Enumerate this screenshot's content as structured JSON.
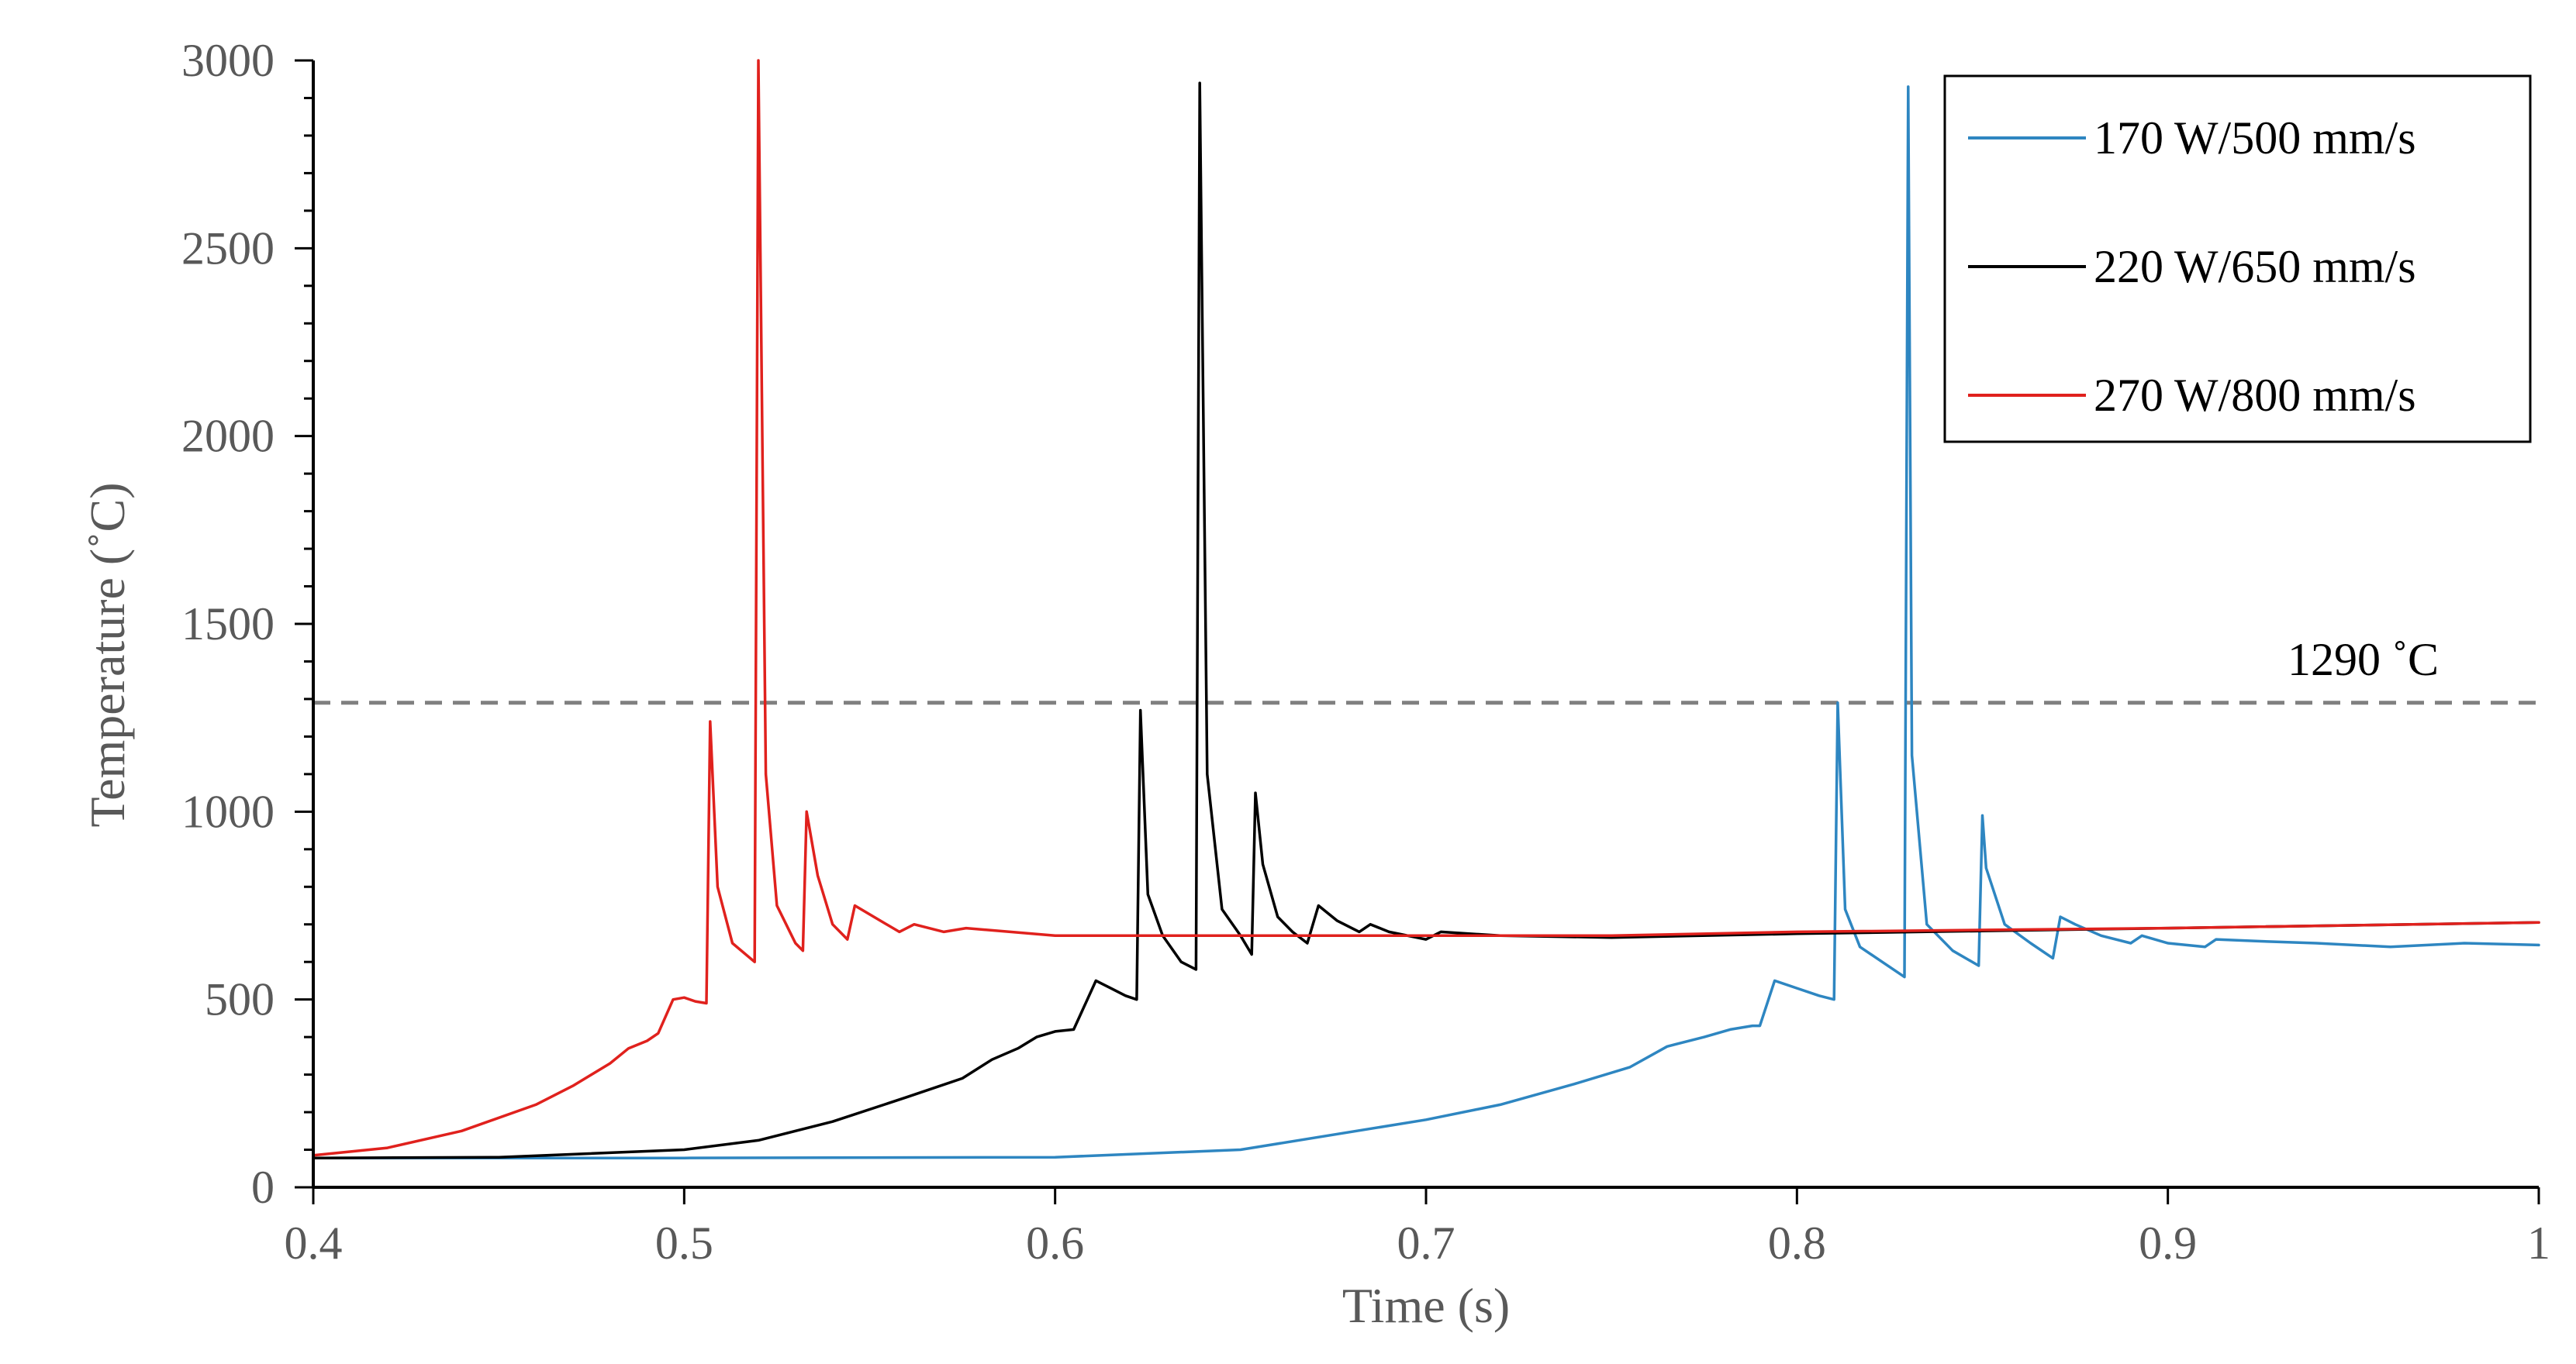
{
  "chart_data": {
    "type": "line",
    "title": "",
    "xlabel": "Time (s)",
    "ylabel": "Temperature (˚C)",
    "xlim": [
      0.4,
      1.0
    ],
    "ylim": [
      0,
      3000
    ],
    "x_ticks": [
      0.4,
      0.5,
      0.6,
      0.7,
      0.8,
      0.9,
      1.0
    ],
    "x_tick_labels": [
      "0.4",
      "0.5",
      "0.6",
      "0.7",
      "0.8",
      "0.9",
      "1"
    ],
    "y_ticks": [
      0,
      500,
      1000,
      1500,
      2000,
      2500,
      3000
    ],
    "y_tick_labels": [
      "0",
      "500",
      "1000",
      "1500",
      "2000",
      "2500",
      "3000"
    ],
    "grid": false,
    "legend_position": "top-right",
    "reference_line": {
      "y": 1290,
      "label": "1290 ˚C",
      "color": "#808080",
      "style": "dashed"
    },
    "series": [
      {
        "name": "170 W/500 mm/s",
        "color": "#2e86c1",
        "x": [
          0.4,
          0.5,
          0.6,
          0.65,
          0.7,
          0.72,
          0.74,
          0.755,
          0.765,
          0.775,
          0.782,
          0.788,
          0.79,
          0.794,
          0.8,
          0.806,
          0.81,
          0.811,
          0.813,
          0.817,
          0.823,
          0.829,
          0.83,
          0.831,
          0.835,
          0.842,
          0.849,
          0.85,
          0.851,
          0.856,
          0.863,
          0.869,
          0.871,
          0.875,
          0.882,
          0.89,
          0.893,
          0.9,
          0.91,
          0.913,
          0.925,
          0.94,
          0.96,
          0.98,
          1.0
        ],
        "y": [
          78,
          78,
          80,
          100,
          180,
          220,
          275,
          320,
          375,
          400,
          420,
          430,
          430,
          550,
          530,
          510,
          500,
          1290,
          740,
          640,
          600,
          560,
          2930,
          1150,
          700,
          630,
          590,
          990,
          850,
          700,
          650,
          610,
          720,
          700,
          670,
          650,
          670,
          650,
          640,
          660,
          655,
          650,
          640,
          650,
          645
        ]
      },
      {
        "name": "220 W/650 mm/s",
        "color": "#000000",
        "x": [
          0.4,
          0.45,
          0.5,
          0.52,
          0.54,
          0.56,
          0.575,
          0.583,
          0.59,
          0.595,
          0.6,
          0.605,
          0.611,
          0.615,
          0.619,
          0.622,
          0.623,
          0.625,
          0.629,
          0.634,
          0.638,
          0.639,
          0.641,
          0.645,
          0.65,
          0.653,
          0.654,
          0.656,
          0.66,
          0.664,
          0.668,
          0.671,
          0.676,
          0.682,
          0.685,
          0.69,
          0.7,
          0.704,
          0.72,
          0.75,
          0.8,
          0.9,
          1.0
        ],
        "y": [
          78,
          80,
          100,
          125,
          175,
          240,
          290,
          340,
          370,
          400,
          415,
          420,
          550,
          530,
          510,
          500,
          1270,
          780,
          670,
          600,
          580,
          2940,
          1100,
          740,
          670,
          620,
          1050,
          860,
          720,
          680,
          650,
          750,
          710,
          680,
          700,
          680,
          660,
          680,
          670,
          665,
          675,
          690,
          705
        ]
      },
      {
        "name": "270 W/800 mm/s",
        "color": "#e0211d",
        "x": [
          0.4,
          0.42,
          0.44,
          0.46,
          0.47,
          0.48,
          0.485,
          0.49,
          0.493,
          0.497,
          0.5,
          0.503,
          0.506,
          0.507,
          0.509,
          0.513,
          0.519,
          0.52,
          0.522,
          0.525,
          0.53,
          0.532,
          0.533,
          0.536,
          0.54,
          0.544,
          0.546,
          0.552,
          0.558,
          0.562,
          0.57,
          0.576,
          0.6,
          0.65,
          0.7,
          0.75,
          0.8,
          0.9,
          1.0
        ],
        "y": [
          85,
          105,
          150,
          220,
          270,
          330,
          370,
          390,
          410,
          500,
          505,
          495,
          490,
          1240,
          800,
          650,
          600,
          3000,
          1100,
          750,
          650,
          630,
          1000,
          830,
          700,
          660,
          750,
          715,
          680,
          700,
          680,
          690,
          670,
          670,
          670,
          670,
          680,
          690,
          705
        ]
      }
    ]
  }
}
